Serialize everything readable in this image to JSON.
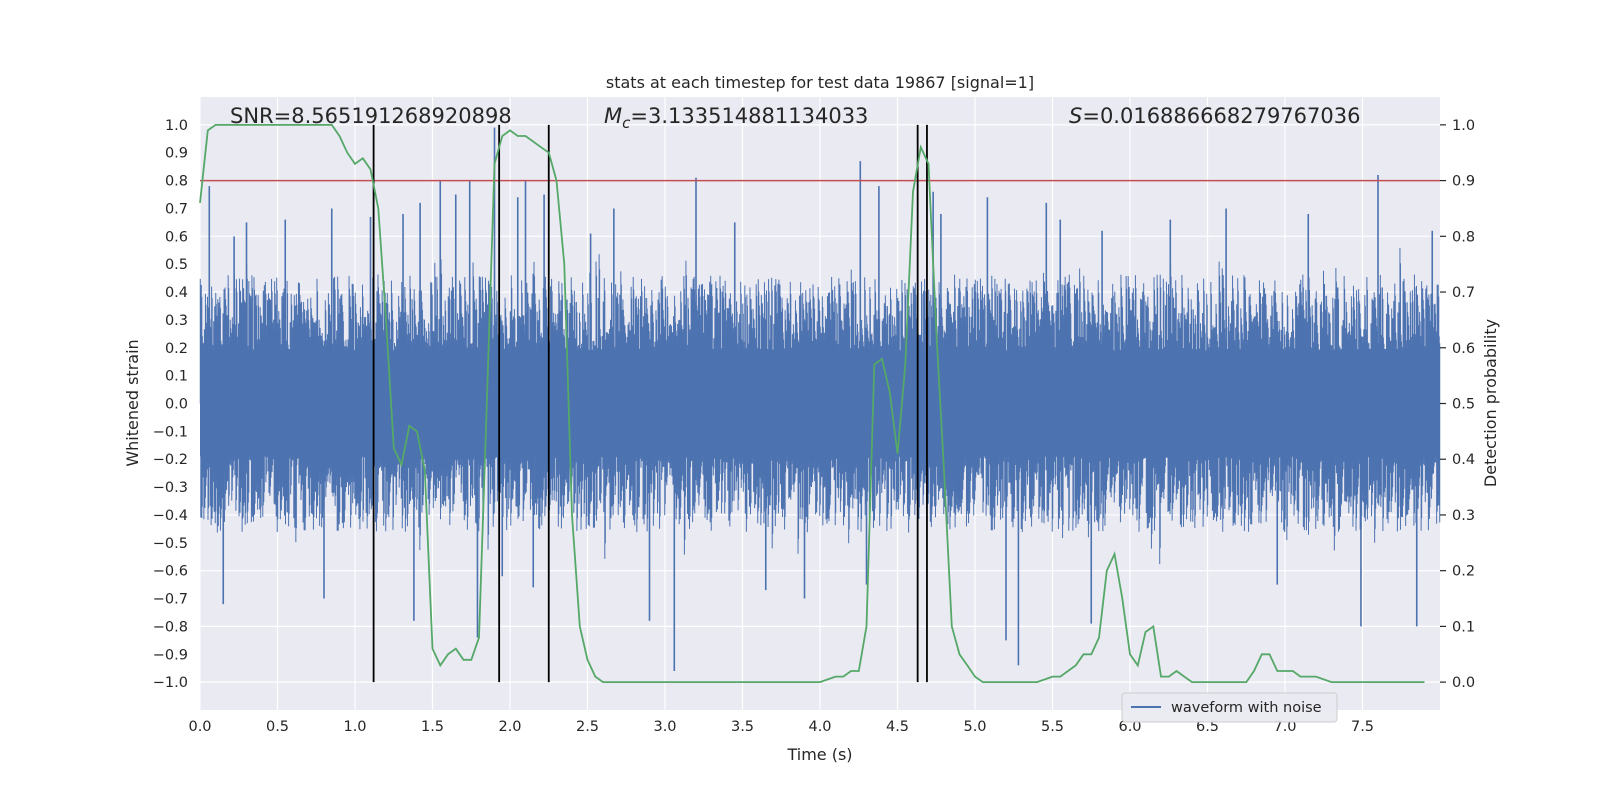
{
  "chart_data": {
    "type": "line",
    "title": "stats at each timestep for test data 19867 [signal=1]",
    "xlabel": "Time (s)",
    "ylabel": "Whitened strain",
    "ylabel_right": "Detection probability",
    "xlim": [
      0.0,
      8.0
    ],
    "ylim": [
      -1.1,
      1.1
    ],
    "ylim_right": [
      -0.05,
      1.05
    ],
    "x_ticks": [
      0.0,
      0.5,
      1.0,
      1.5,
      2.0,
      2.5,
      3.0,
      3.5,
      4.0,
      4.5,
      5.0,
      5.5,
      6.0,
      6.5,
      7.0,
      7.5
    ],
    "x_tick_labels": [
      "0.0",
      "0.5",
      "1.0",
      "1.5",
      "2.0",
      "2.5",
      "3.0",
      "3.5",
      "4.0",
      "4.5",
      "5.0",
      "5.5",
      "6.0",
      "6.5",
      "7.0",
      "7.5"
    ],
    "y_ticks": [
      -1.0,
      -0.9,
      -0.8,
      -0.7,
      -0.6,
      -0.5,
      -0.4,
      -0.3,
      -0.2,
      -0.1,
      0.0,
      0.1,
      0.2,
      0.3,
      0.4,
      0.5,
      0.6,
      0.7,
      0.8,
      0.9,
      1.0
    ],
    "y_tick_labels": [
      "−1.0",
      "−0.9",
      "−0.8",
      "−0.7",
      "−0.6",
      "−0.5",
      "−0.4",
      "−0.3",
      "−0.2",
      "−0.1",
      "0.0",
      "0.1",
      "0.2",
      "0.3",
      "0.4",
      "0.5",
      "0.6",
      "0.7",
      "0.8",
      "0.9",
      "1.0"
    ],
    "y_right_ticks": [
      0.0,
      0.1,
      0.2,
      0.3,
      0.4,
      0.5,
      0.6,
      0.7,
      0.8,
      0.9,
      1.0
    ],
    "y_right_tick_labels": [
      "0.0",
      "0.1",
      "0.2",
      "0.3",
      "0.4",
      "0.5",
      "0.6",
      "0.7",
      "0.8",
      "0.9",
      "1.0"
    ],
    "grid": true,
    "legend": {
      "position": "bottom-right",
      "entries": [
        {
          "label": "waveform with noise",
          "color": "#4c72b0"
        }
      ]
    },
    "annotations": {
      "snr": "SNR=8.565191268920898",
      "mc_symbol": "M",
      "mc_sub": "c",
      "mc_value": "=3.133514881134033",
      "s_symbol": "S",
      "s_value": "=0.016886668279767036"
    },
    "threshold": {
      "value": 0.9,
      "axis": "right",
      "color": "#c44e52"
    },
    "vertical_lines": [
      1.12,
      1.93,
      2.25,
      4.63,
      4.69
    ],
    "colors": {
      "background": "#eaeaf2",
      "grid": "#ffffff",
      "waveform": "#4c72b0",
      "probability": "#55a868",
      "vlines": "#000000"
    },
    "series": [
      {
        "name": "waveform with noise",
        "kind": "noise",
        "axis": "left",
        "envelope_core": 0.19,
        "envelope_typical": 0.45,
        "spikes": [
          [
            0.06,
            0.78
          ],
          [
            0.15,
            -0.72
          ],
          [
            0.22,
            0.6
          ],
          [
            0.3,
            0.65
          ],
          [
            0.55,
            0.66
          ],
          [
            0.8,
            -0.7
          ],
          [
            0.85,
            0.7
          ],
          [
            1.1,
            0.67
          ],
          [
            1.31,
            0.68
          ],
          [
            1.38,
            -0.78
          ],
          [
            1.42,
            0.72
          ],
          [
            1.55,
            0.8
          ],
          [
            1.65,
            0.75
          ],
          [
            1.74,
            0.8
          ],
          [
            1.79,
            -0.84
          ],
          [
            1.9,
            0.99
          ],
          [
            1.95,
            -0.62
          ],
          [
            2.05,
            0.74
          ],
          [
            2.1,
            0.8
          ],
          [
            2.15,
            -0.66
          ],
          [
            2.22,
            0.75
          ],
          [
            2.52,
            0.61
          ],
          [
            2.67,
            0.7
          ],
          [
            2.9,
            -0.78
          ],
          [
            3.06,
            -0.96
          ],
          [
            3.2,
            0.81
          ],
          [
            3.45,
            0.65
          ],
          [
            3.65,
            -0.67
          ],
          [
            3.9,
            -0.7
          ],
          [
            4.26,
            0.87
          ],
          [
            4.3,
            -0.65
          ],
          [
            4.38,
            0.78
          ],
          [
            4.73,
            0.76
          ],
          [
            4.78,
            0.68
          ],
          [
            5.08,
            0.74
          ],
          [
            5.2,
            -0.85
          ],
          [
            5.28,
            -0.94
          ],
          [
            5.46,
            0.72
          ],
          [
            5.55,
            0.66
          ],
          [
            5.75,
            -0.79
          ],
          [
            5.82,
            0.62
          ],
          [
            6.26,
            0.66
          ],
          [
            6.62,
            0.7
          ],
          [
            6.95,
            -0.65
          ],
          [
            7.15,
            0.68
          ],
          [
            7.49,
            -0.8
          ],
          [
            7.6,
            0.82
          ],
          [
            7.85,
            -0.8
          ],
          [
            7.95,
            0.62
          ]
        ]
      },
      {
        "name": "detection probability",
        "kind": "line",
        "axis": "right",
        "x": [
          0.0,
          0.05,
          0.1,
          0.15,
          0.2,
          0.3,
          0.4,
          0.5,
          0.6,
          0.7,
          0.8,
          0.85,
          0.9,
          0.95,
          1.0,
          1.05,
          1.1,
          1.15,
          1.2,
          1.25,
          1.3,
          1.35,
          1.4,
          1.45,
          1.5,
          1.55,
          1.6,
          1.65,
          1.7,
          1.75,
          1.8,
          1.85,
          1.9,
          1.95,
          2.0,
          2.05,
          2.1,
          2.15,
          2.2,
          2.25,
          2.3,
          2.35,
          2.4,
          2.45,
          2.5,
          2.55,
          2.6,
          2.7,
          2.8,
          2.9,
          3.0,
          3.1,
          3.2,
          3.3,
          3.4,
          3.5,
          3.6,
          3.7,
          3.8,
          3.9,
          4.0,
          4.1,
          4.15,
          4.2,
          4.25,
          4.3,
          4.35,
          4.4,
          4.45,
          4.5,
          4.55,
          4.6,
          4.65,
          4.7,
          4.75,
          4.8,
          4.85,
          4.9,
          4.95,
          5.0,
          5.05,
          5.1,
          5.2,
          5.3,
          5.4,
          5.5,
          5.55,
          5.6,
          5.65,
          5.7,
          5.75,
          5.8,
          5.85,
          5.9,
          5.95,
          6.0,
          6.05,
          6.1,
          6.15,
          6.2,
          6.25,
          6.3,
          6.35,
          6.4,
          6.45,
          6.5,
          6.6,
          6.7,
          6.75,
          6.8,
          6.85,
          6.9,
          6.95,
          7.0,
          7.05,
          7.1,
          7.2,
          7.3,
          7.4,
          7.5,
          7.6,
          7.7,
          7.8,
          7.9
        ],
        "y": [
          0.86,
          0.99,
          1.0,
          1.0,
          1.0,
          1.0,
          1.0,
          1.0,
          1.0,
          1.0,
          1.0,
          1.0,
          0.98,
          0.95,
          0.93,
          0.94,
          0.92,
          0.85,
          0.65,
          0.42,
          0.39,
          0.46,
          0.45,
          0.38,
          0.06,
          0.03,
          0.05,
          0.06,
          0.04,
          0.04,
          0.08,
          0.5,
          0.93,
          0.98,
          0.99,
          0.98,
          0.98,
          0.97,
          0.96,
          0.95,
          0.9,
          0.75,
          0.3,
          0.1,
          0.04,
          0.01,
          0.0,
          0.0,
          0.0,
          0.0,
          0.0,
          0.0,
          0.0,
          0.0,
          0.0,
          0.0,
          0.0,
          0.0,
          0.0,
          0.0,
          0.0,
          0.01,
          0.01,
          0.02,
          0.02,
          0.1,
          0.57,
          0.58,
          0.52,
          0.41,
          0.57,
          0.88,
          0.96,
          0.93,
          0.63,
          0.38,
          0.1,
          0.05,
          0.03,
          0.01,
          0.0,
          0.0,
          0.0,
          0.0,
          0.0,
          0.01,
          0.01,
          0.02,
          0.03,
          0.05,
          0.05,
          0.08,
          0.2,
          0.23,
          0.15,
          0.05,
          0.03,
          0.09,
          0.1,
          0.01,
          0.01,
          0.02,
          0.01,
          0.0,
          0.0,
          0.0,
          0.0,
          0.0,
          0.0,
          0.02,
          0.05,
          0.05,
          0.02,
          0.02,
          0.02,
          0.01,
          0.01,
          0.0,
          0.0,
          0.0,
          0.0,
          0.0,
          0.0,
          0.0
        ]
      }
    ]
  }
}
